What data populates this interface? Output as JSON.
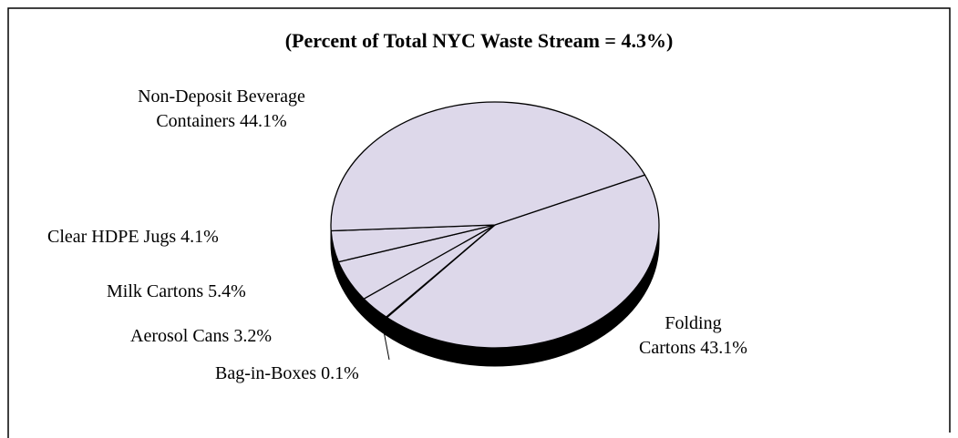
{
  "chart_data": {
    "type": "pie",
    "title": "(Percent of Total NYC Waste Stream = 4.3%)",
    "categories": [
      "Folding Cartons",
      "Bag-in-Boxes",
      "Aerosol Cans",
      "Milk Cartons",
      "Clear HDPE Jugs",
      "Non-Deposit Beverage Containers"
    ],
    "values": [
      43.1,
      0.1,
      3.2,
      5.4,
      4.1,
      44.1
    ],
    "value_labels": [
      "43.1%",
      "0.1%",
      "3.2%",
      "5.4%",
      "4.1%",
      "44.1%"
    ],
    "color": "#ddd8ea",
    "three_d": true
  }
}
